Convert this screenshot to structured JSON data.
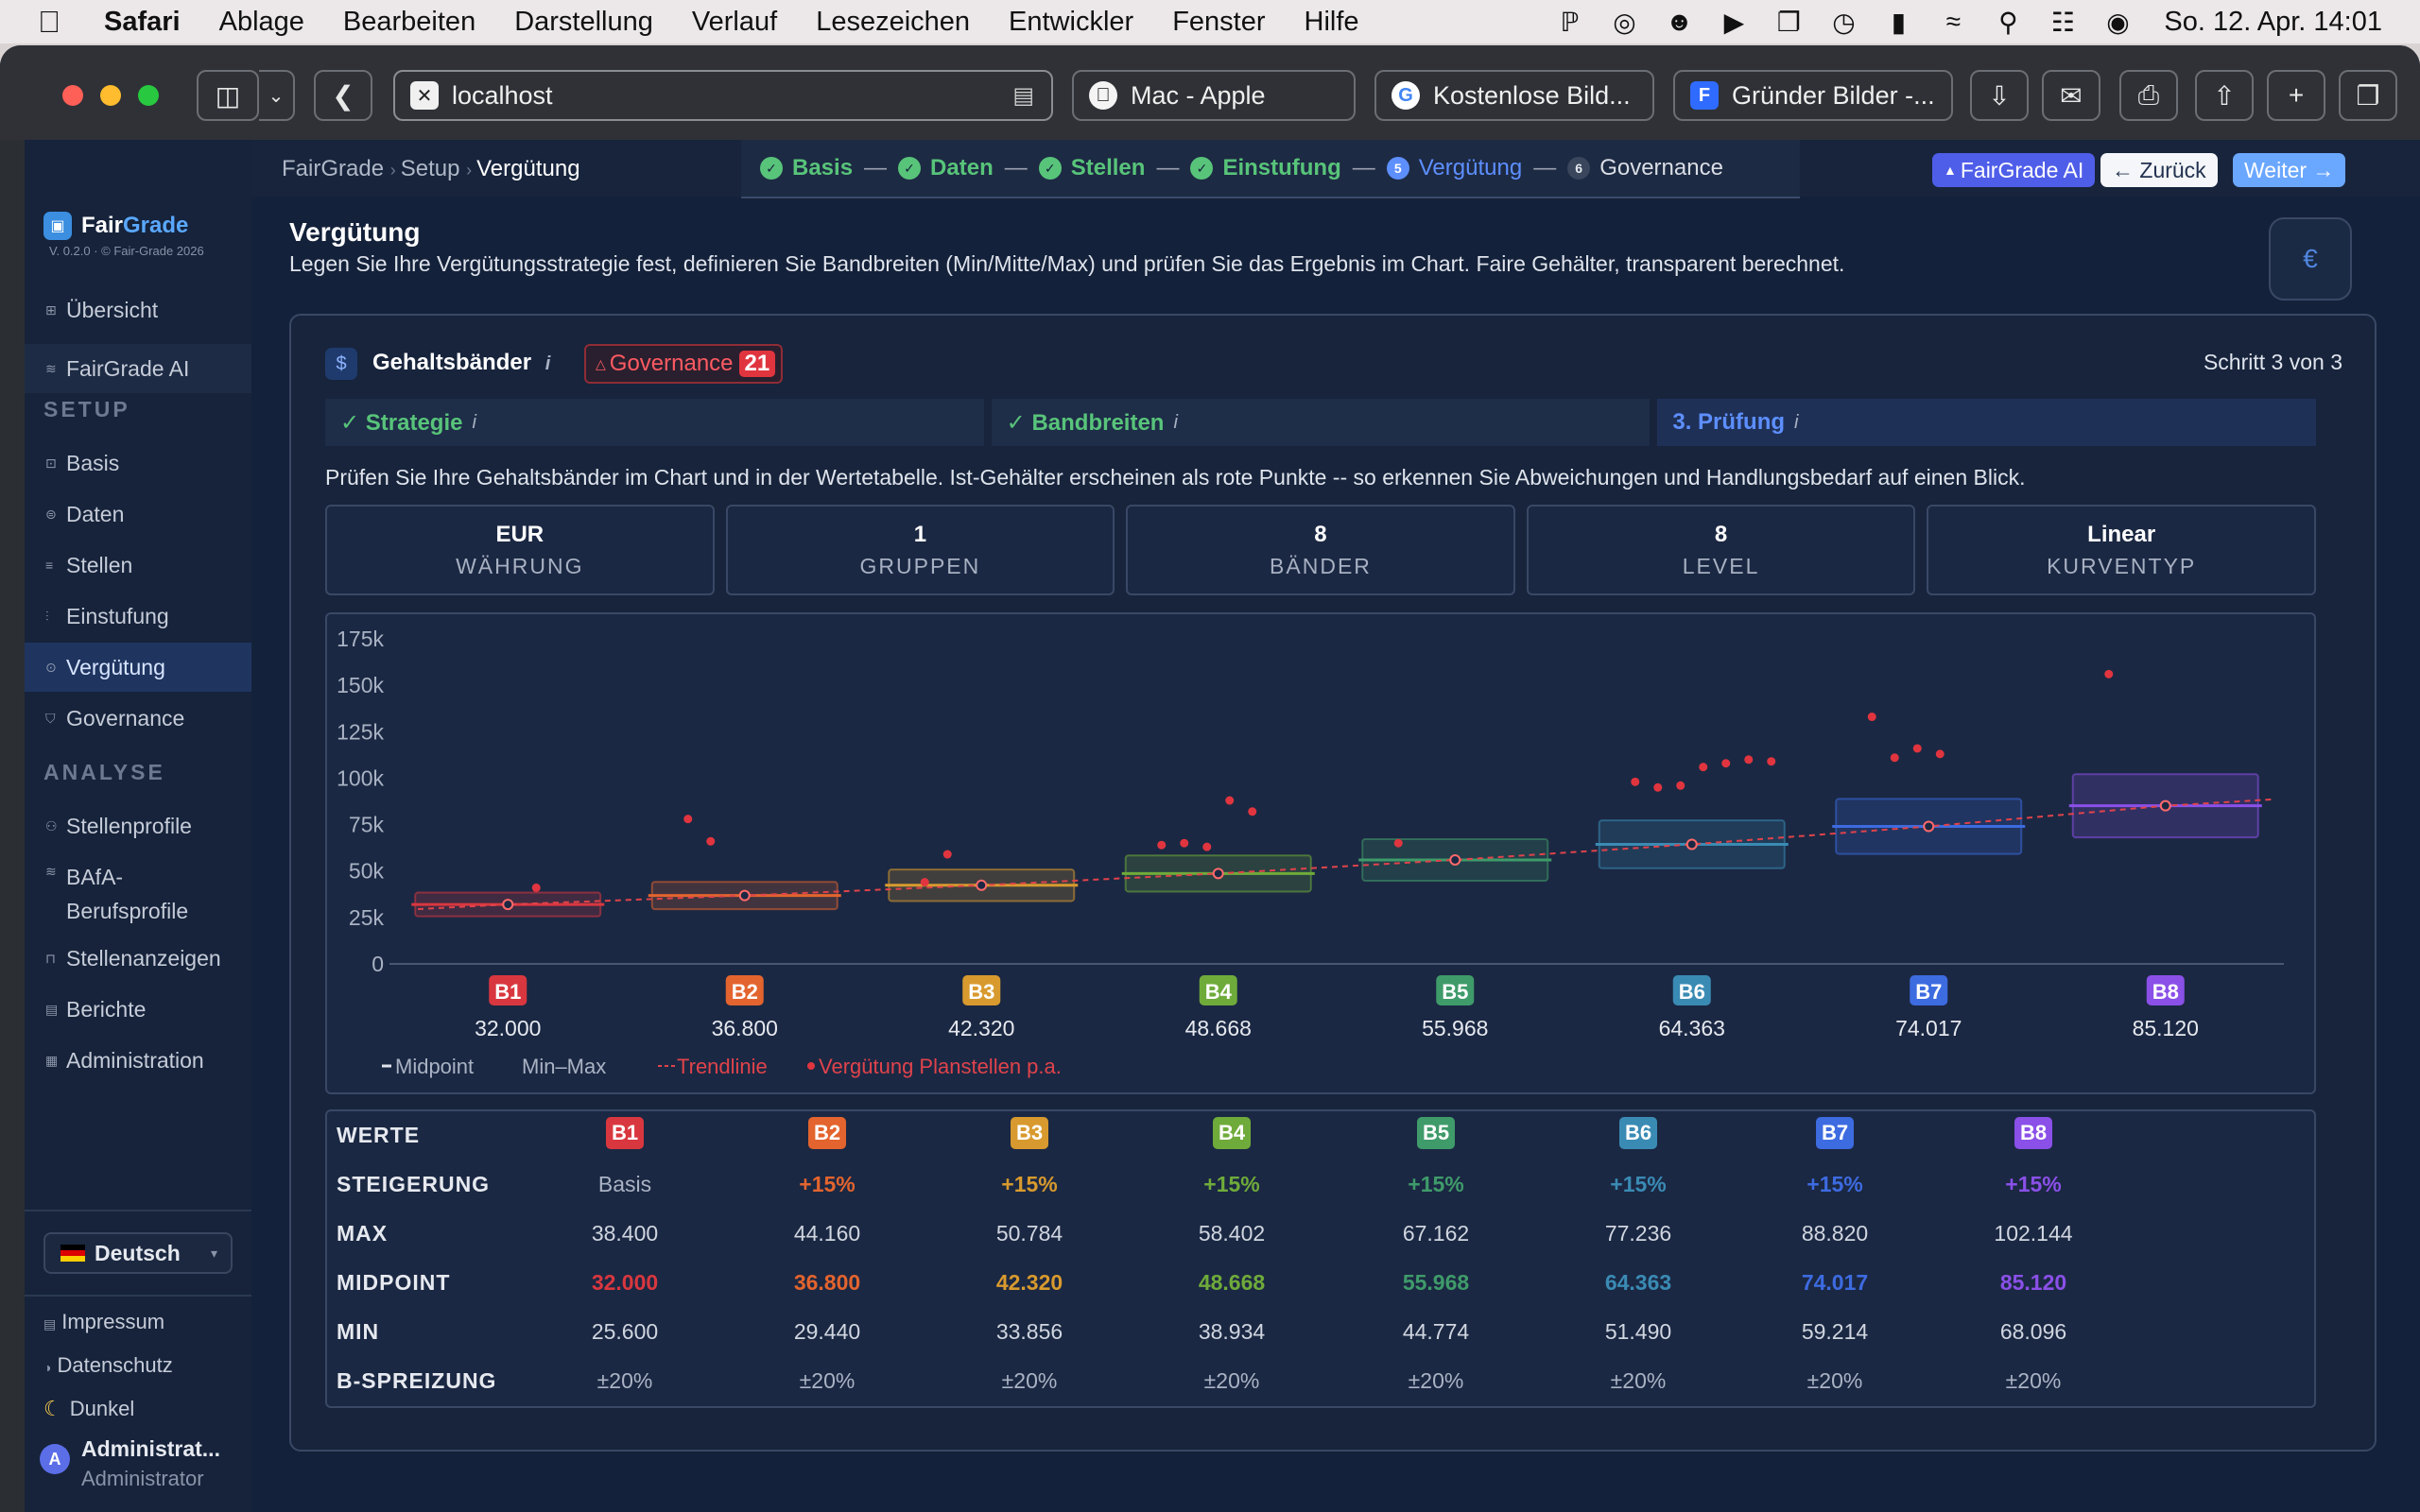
{
  "menubar": {
    "items": [
      "Safari",
      "Ablage",
      "Bearbeiten",
      "Darstellung",
      "Verlauf",
      "Lesezeichen",
      "Entwickler",
      "Fenster",
      "Hilfe"
    ],
    "clock": "So. 12. Apr.  14:01"
  },
  "browser": {
    "url": "localhost",
    "tabs": [
      "Mac - Apple",
      "Kostenlose Bild...",
      "Gründer Bilder -..."
    ]
  },
  "sidebar": {
    "brand_a": "Fair",
    "brand_b": "Grade",
    "version": "V. 0.2.0 · © Fair-Grade 2026",
    "top": [
      {
        "icon": "grid-icon",
        "glyph": "⊞",
        "label": "Übersicht"
      },
      {
        "icon": "layers-icon",
        "glyph": "≋",
        "label": "FairGrade AI"
      }
    ],
    "setup_title": "SETUP",
    "setup": [
      {
        "icon": "box-icon",
        "glyph": "⊡",
        "label": "Basis"
      },
      {
        "icon": "database-icon",
        "glyph": "⊜",
        "label": "Daten"
      },
      {
        "icon": "list-icon",
        "glyph": "≡",
        "label": "Stellen"
      },
      {
        "icon": "bars-icon",
        "glyph": "⫶",
        "label": "Einstufung"
      },
      {
        "icon": "clock-icon",
        "glyph": "⊙",
        "label": "Vergütung"
      },
      {
        "icon": "shield-icon",
        "glyph": "⛉",
        "label": "Governance"
      }
    ],
    "analyse_title": "ANALYSE",
    "analyse": [
      {
        "icon": "profile-icon",
        "glyph": "⚇",
        "label": "Stellenprofile"
      },
      {
        "icon": "list-icon",
        "glyph": "≋",
        "label": "BAfA-"
      },
      {
        "icon": "briefcase-icon",
        "glyph": "⊓",
        "label": "Stellenanzeigen"
      },
      {
        "icon": "doc-icon",
        "glyph": "▤",
        "label": "Berichte"
      },
      {
        "icon": "admin-icon",
        "glyph": "▦",
        "label": "Administration"
      }
    ],
    "analyse_bafa_line2": "Berufsprofile",
    "language": "Deutsch",
    "imprint": "Impressum",
    "privacy": "Datenschutz",
    "theme": "Dunkel",
    "user_name": "Administrat...",
    "user_role": "Administrator",
    "user_initial": "A"
  },
  "header": {
    "breadcrumb": [
      "FairGrade",
      "Setup",
      "Vergütung"
    ],
    "steps": [
      {
        "label": "Basis",
        "state": "done"
      },
      {
        "label": "Daten",
        "state": "done"
      },
      {
        "label": "Stellen",
        "state": "done"
      },
      {
        "label": "Einstufung",
        "state": "done"
      },
      {
        "label": "Vergütung",
        "state": "current",
        "num": "5"
      },
      {
        "label": "Governance",
        "state": "next",
        "num": "6"
      }
    ],
    "ai_button": "FairGrade AI",
    "back_button": "← Zurück",
    "next_button": "Weiter →"
  },
  "page": {
    "title": "Vergütung",
    "description": "Legen Sie Ihre Vergütungsstrategie fest, definieren Sie Bandbreiten (Min/Mitte/Max) und prüfen Sie das Ergebnis im Chart. Faire Gehälter, transparent berechnet."
  },
  "card": {
    "title": "Gehaltsbänder",
    "governance_label": "Governance",
    "governance_count": "21",
    "step_of": "Schritt 3 von 3",
    "subtabs": [
      {
        "label": "✓ Strategie",
        "state": "done"
      },
      {
        "label": "✓ Bandbreiten",
        "state": "done"
      },
      {
        "label": "3. Prüfung",
        "state": "current"
      }
    ],
    "intro": "Prüfen Sie Ihre Gehaltsbänder im Chart und in der Wertetabelle. Ist-Gehälter erscheinen als rote Punkte -- so erkennen Sie Abweichungen und Handlungsbedarf auf einen Blick.",
    "stats": [
      {
        "value": "EUR",
        "label": "WÄHRUNG"
      },
      {
        "value": "1",
        "label": "GRUPPEN"
      },
      {
        "value": "8",
        "label": "BÄNDER"
      },
      {
        "value": "8",
        "label": "LEVEL"
      },
      {
        "value": "Linear",
        "label": "KURVENTYP"
      }
    ]
  },
  "chart_data": {
    "type": "bar",
    "ylim": [
      0,
      175000
    ],
    "yticks": [
      "175k",
      "150k",
      "125k",
      "100k",
      "75k",
      "50k",
      "25k",
      "0"
    ],
    "categories": [
      "B1",
      "B2",
      "B3",
      "B4",
      "B5",
      "B6",
      "B7",
      "B8"
    ],
    "colors": [
      "#d9373f",
      "#e3642e",
      "#d89a2e",
      "#6fab3a",
      "#3f9b6a",
      "#3a8bb4",
      "#3d6be0",
      "#8a50e8"
    ],
    "min": [
      25600,
      29440,
      33856,
      38934,
      44774,
      51490,
      59214,
      68096
    ],
    "midpoint": [
      32000,
      36800,
      42320,
      48668,
      55968,
      64363,
      74017,
      85120
    ],
    "max": [
      38400,
      44160,
      50784,
      58402,
      67162,
      77236,
      88820,
      102144
    ],
    "midpoint_labels": [
      "32.000",
      "36.800",
      "42.320",
      "48.668",
      "55.968",
      "64.363",
      "74.017",
      "85.120"
    ],
    "actual_salaries": [
      {
        "band": "B1",
        "y": 41000
      },
      {
        "band": "B2",
        "y": 78000
      },
      {
        "band": "B2",
        "y": 66000
      },
      {
        "band": "B3",
        "y": 44000
      },
      {
        "band": "B3",
        "y": 59000
      },
      {
        "band": "B4",
        "y": 64000
      },
      {
        "band": "B4",
        "y": 65000
      },
      {
        "band": "B4",
        "y": 63000
      },
      {
        "band": "B4",
        "y": 88000
      },
      {
        "band": "B4",
        "y": 82000
      },
      {
        "band": "B5",
        "y": 65000
      },
      {
        "band": "B6",
        "y": 98000
      },
      {
        "band": "B6",
        "y": 95000
      },
      {
        "band": "B6",
        "y": 96000
      },
      {
        "band": "B6",
        "y": 106000
      },
      {
        "band": "B6",
        "y": 108000
      },
      {
        "band": "B6",
        "y": 110000
      },
      {
        "band": "B6",
        "y": 109000
      },
      {
        "band": "B7",
        "y": 133000
      },
      {
        "band": "B7",
        "y": 111000
      },
      {
        "band": "B7",
        "y": 116000
      },
      {
        "band": "B7",
        "y": 113000
      },
      {
        "band": "B8",
        "y": 156000
      }
    ],
    "legend": [
      "Midpoint",
      "Min–Max",
      "Trendlinie",
      "Vergütung Planstellen p.a."
    ],
    "grid": false
  },
  "values_table": {
    "header": "WERTE",
    "rows": [
      {
        "label": "STEIGERUNG",
        "cells": [
          "Basis",
          "+15%",
          "+15%",
          "+15%",
          "+15%",
          "+15%",
          "+15%",
          "+15%"
        ]
      },
      {
        "label": "MAX",
        "cells": [
          "38.400",
          "44.160",
          "50.784",
          "58.402",
          "67.162",
          "77.236",
          "88.820",
          "102.144"
        ]
      },
      {
        "label": "MIDPOINT",
        "cells": [
          "32.000",
          "36.800",
          "42.320",
          "48.668",
          "55.968",
          "64.363",
          "74.017",
          "85.120"
        ]
      },
      {
        "label": "MIN",
        "cells": [
          "25.600",
          "29.440",
          "33.856",
          "38.934",
          "44.774",
          "51.490",
          "59.214",
          "68.096"
        ]
      },
      {
        "label": "B-SPREIZUNG",
        "cells": [
          "±20%",
          "±20%",
          "±20%",
          "±20%",
          "±20%",
          "±20%",
          "±20%",
          "±20%"
        ]
      }
    ]
  }
}
